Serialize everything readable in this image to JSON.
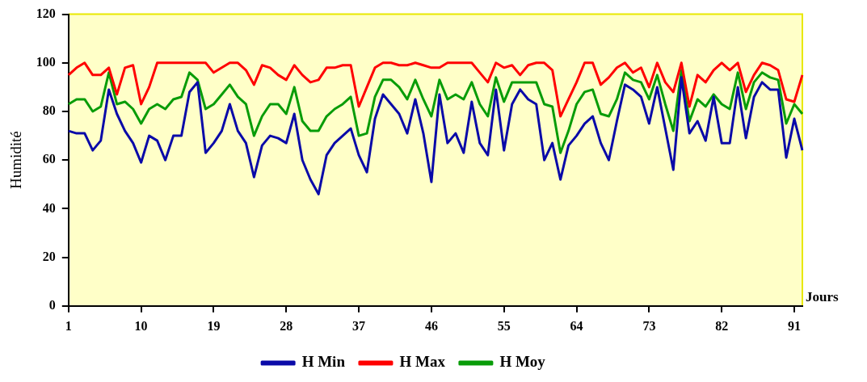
{
  "chart_data": {
    "type": "line",
    "xlabel": "Jours",
    "ylabel": "Humidité",
    "categories": [
      "1",
      null,
      null,
      null,
      null,
      null,
      null,
      null,
      null,
      "10",
      null,
      null,
      null,
      null,
      null,
      null,
      null,
      null,
      "19",
      null,
      null,
      null,
      null,
      null,
      null,
      null,
      null,
      "28",
      null,
      null,
      null,
      null,
      null,
      null,
      null,
      null,
      "37",
      null,
      null,
      null,
      null,
      null,
      null,
      null,
      null,
      "46",
      null,
      null,
      null,
      null,
      null,
      null,
      null,
      null,
      "55",
      null,
      null,
      null,
      null,
      null,
      null,
      null,
      null,
      "64",
      null,
      null,
      null,
      null,
      null,
      null,
      null,
      null,
      "73",
      null,
      null,
      null,
      null,
      null,
      null,
      null,
      null,
      "82",
      null,
      null,
      null,
      null,
      null,
      null,
      null,
      null,
      "91",
      null
    ],
    "series": [
      {
        "name": "H Min",
        "color": "#0a0aa8",
        "values": [
          72,
          71,
          71,
          64,
          68,
          89,
          79,
          72,
          67,
          59,
          70,
          68,
          60,
          70,
          70,
          88,
          92,
          63,
          67,
          72,
          83,
          72,
          67,
          53,
          66,
          70,
          69,
          67,
          79,
          60,
          52,
          46,
          62,
          67,
          70,
          73,
          62,
          55,
          77,
          87,
          83,
          79,
          71,
          85,
          71,
          51,
          87,
          67,
          71,
          63,
          84,
          67,
          62,
          89,
          64,
          83,
          89,
          85,
          83,
          60,
          67,
          52,
          66,
          70,
          75,
          78,
          67,
          60,
          76,
          91,
          89,
          86,
          75,
          90,
          73,
          56,
          94,
          71,
          76,
          68,
          86,
          67,
          67,
          90,
          69,
          86,
          92,
          89,
          89,
          61,
          77,
          64
        ]
      },
      {
        "name": "H Max",
        "color": "#ff0000",
        "values": [
          95,
          98,
          100,
          95,
          95,
          98,
          87,
          98,
          99,
          83,
          90,
          100,
          100,
          100,
          100,
          100,
          100,
          100,
          96,
          98,
          100,
          100,
          97,
          91,
          99,
          98,
          95,
          93,
          99,
          95,
          92,
          93,
          98,
          98,
          99,
          99,
          82,
          90,
          98,
          100,
          100,
          99,
          99,
          100,
          99,
          98,
          98,
          100,
          100,
          100,
          100,
          96,
          92,
          100,
          98,
          99,
          95,
          99,
          100,
          100,
          97,
          78,
          85,
          92,
          100,
          100,
          91,
          94,
          98,
          100,
          96,
          98,
          90,
          100,
          92,
          88,
          100,
          82,
          95,
          92,
          97,
          100,
          97,
          100,
          88,
          95,
          100,
          99,
          97,
          85,
          84,
          95
        ]
      },
      {
        "name": "H Moy",
        "color": "#089c08",
        "values": [
          83,
          85,
          85,
          80,
          82,
          96,
          83,
          84,
          81,
          75,
          81,
          83,
          81,
          85,
          86,
          96,
          93,
          81,
          83,
          87,
          91,
          86,
          83,
          70,
          78,
          83,
          83,
          79,
          90,
          76,
          72,
          72,
          78,
          81,
          83,
          86,
          70,
          71,
          86,
          93,
          93,
          90,
          85,
          93,
          85,
          78,
          93,
          85,
          87,
          85,
          92,
          83,
          78,
          94,
          84,
          92,
          92,
          92,
          92,
          83,
          82,
          63,
          72,
          83,
          88,
          89,
          79,
          78,
          85,
          96,
          93,
          92,
          85,
          95,
          83,
          72,
          97,
          76,
          85,
          82,
          87,
          83,
          81,
          96,
          81,
          92,
          96,
          94,
          93,
          75,
          83,
          79
        ]
      }
    ],
    "ylim": [
      0,
      120
    ],
    "yticks": [
      0,
      20,
      40,
      60,
      80,
      100,
      120
    ],
    "legend": "bottom",
    "grid": false
  }
}
